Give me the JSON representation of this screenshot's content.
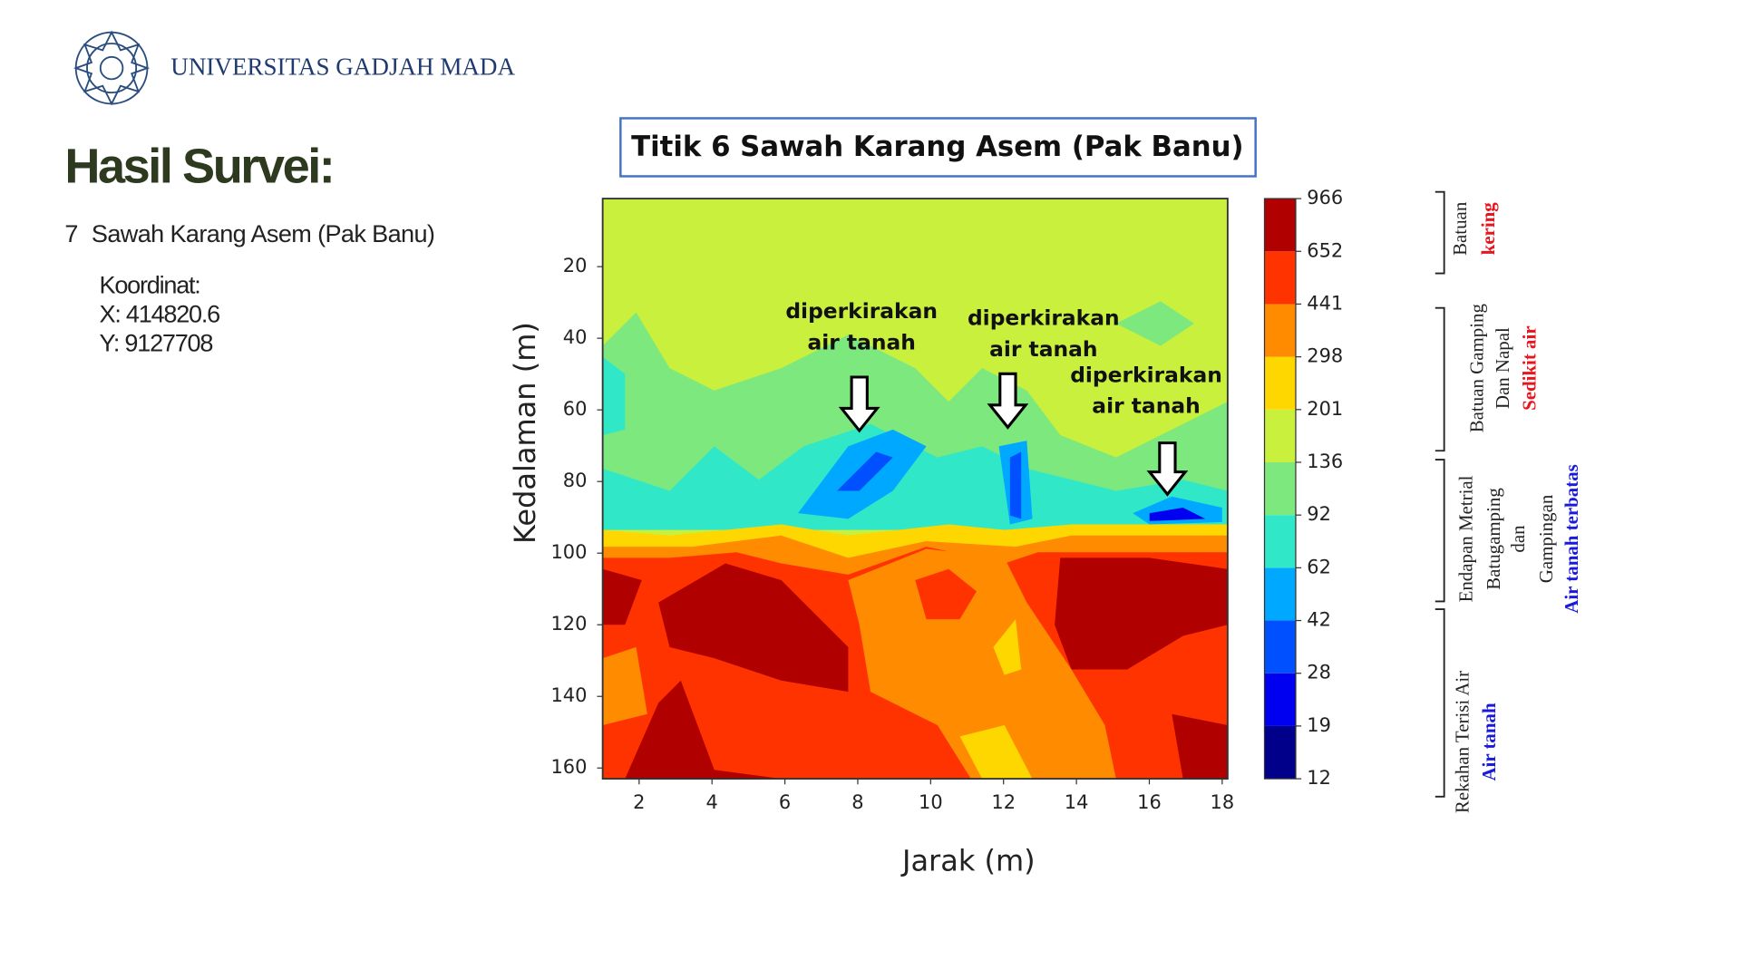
{
  "header": {
    "institution": "UNIVERSITAS GADJAH MADA"
  },
  "slide": {
    "title": "Hasil Survei:",
    "item_number": "7",
    "item": "Sawah Karang Asem (Pak Banu)",
    "coordinates": [
      "Koordinat:",
      "X: 414820.6",
      "Y: 9127708"
    ]
  },
  "chart_data": {
    "type": "contour",
    "title": "Titik 6 Sawah Karang Asem (Pak Banu)",
    "x_label": "Jarak (m)",
    "y_label": "Kedalaman (m)",
    "xlim": [
      1,
      18.15
    ],
    "xticks": [
      2,
      4,
      6,
      8,
      10,
      12,
      14,
      16,
      18
    ],
    "ylim": [
      1,
      163
    ],
    "y_inverted": true,
    "yticks": [
      20,
      40,
      60,
      80,
      100,
      120,
      140,
      160
    ],
    "levels": [
      12,
      19,
      28,
      42,
      62,
      92,
      136,
      201,
      298,
      441,
      652,
      966
    ],
    "colors": [
      "#00008b",
      "#0000f0",
      "#0050ff",
      "#00a8ff",
      "#30e8c8",
      "#7de87d",
      "#c8f03c",
      "#ffd700",
      "#ff8c00",
      "#ff3300",
      "#b00000"
    ],
    "annotations": [
      [
        "diperkirakan",
        "air tanah"
      ],
      [
        "diperkirakan",
        "air tanah"
      ],
      [
        "diperkirakan",
        "air tanah"
      ]
    ],
    "zones": [
      [
        {
          "text": "Batuan",
          "color": "#222222"
        },
        {
          "text": "kering",
          "color": "#e8141e"
        }
      ],
      [
        {
          "text": "Batuan Gamping",
          "color": "#222222"
        },
        {
          "text": "Dan Napal",
          "color": "#222222"
        },
        {
          "text": "Sedikit air",
          "color": "#e8141e"
        }
      ],
      [
        {
          "text": "Endapan Metrial",
          "color": "#222222"
        },
        {
          "text": "Batugamping",
          "color": "#222222"
        },
        {
          "text": "dan",
          "color": "#222222"
        },
        {
          "text": "Gampingan",
          "color": "#222222"
        },
        {
          "text": "Air tanah terbatas",
          "color": "#1a1adc"
        }
      ],
      [
        {
          "text": "Rekahan Terisi Air",
          "color": "#222222"
        },
        {
          "text": "Air tanah",
          "color": "#1a1adc"
        }
      ]
    ]
  }
}
